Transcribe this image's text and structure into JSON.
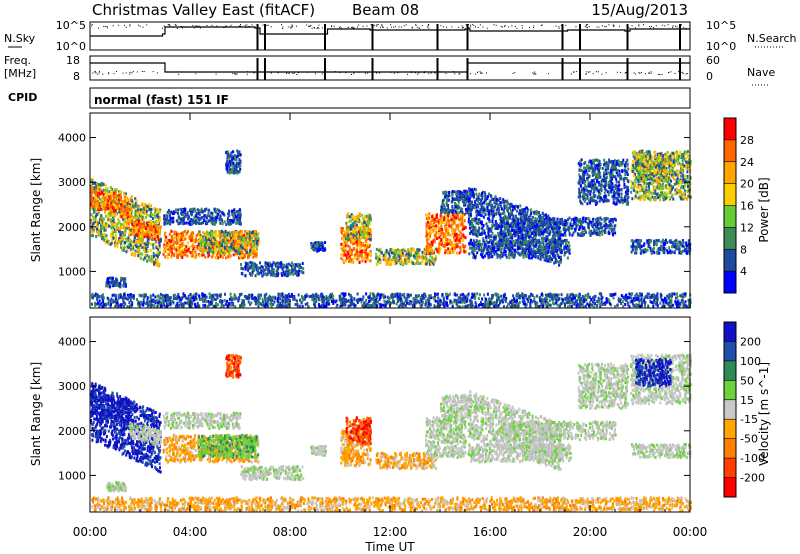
{
  "header": {
    "title": "Christmas Valley East (fitACF)",
    "beam": "Beam 08",
    "date": "15/Aug/2013"
  },
  "nsky_panel": {
    "label": "N.Sky",
    "right_label": "N.Search",
    "y_ticks_left": [
      "10^5",
      "10^0"
    ],
    "y_ticks_right": [
      "10^5",
      "10^0"
    ]
  },
  "freq_panel": {
    "label_line1": "Freq.",
    "label_line2": "[MHz]",
    "right_label": "Nave",
    "y_ticks_left": [
      "18",
      "8"
    ],
    "y_ticks_right": [
      "60",
      "0"
    ]
  },
  "cpid": {
    "label": "CPID",
    "mode": "normal (fast) 151 IF"
  },
  "chart_data": [
    {
      "type": "heatmap",
      "name": "power",
      "ylabel": "Slant Range [km]",
      "xlabel": "",
      "y_ticks": [
        1000,
        2000,
        3000,
        4000
      ],
      "ylim": [
        180,
        4550
      ],
      "xlim_hours": [
        0,
        24
      ],
      "colorbar": {
        "label": "Power [dB]",
        "ticks": [
          "28",
          "24",
          "20",
          "16",
          "12",
          "8",
          "4"
        ],
        "colors": [
          "#ff0000",
          "#ff6600",
          "#ffa500",
          "#ffcc00",
          "#66cc33",
          "#3c8c5a",
          "#1c4ba0",
          "#0000ff"
        ]
      }
    },
    {
      "type": "heatmap",
      "name": "velocity",
      "ylabel": "Slant Range [km]",
      "xlabel": "Time UT",
      "y_ticks": [
        1000,
        2000,
        3000,
        4000
      ],
      "ylim": [
        180,
        4550
      ],
      "xlim_hours": [
        0,
        24
      ],
      "x_tick_labels": [
        "00:00",
        "04:00",
        "08:00",
        "12:00",
        "16:00",
        "20:00",
        "00:00"
      ],
      "colorbar": {
        "label": "Velocity [m s^-1]",
        "ticks": [
          "200",
          "100",
          "50",
          "15",
          "-15",
          "-50",
          "-100",
          "-200"
        ],
        "colors": [
          "#1010c8",
          "#1f4faa",
          "#2e8b57",
          "#6cd33c",
          "#c8c8c8",
          "#ffa500",
          "#ff7f00",
          "#ff4000",
          "#ff0000"
        ]
      }
    }
  ],
  "scatter_regions": [
    {
      "t0": 0.0,
      "t1": 2.8,
      "r0": 1800,
      "r1": 3100,
      "slope": -260,
      "power": "mid",
      "vel": "blue"
    },
    {
      "t0": 0.0,
      "t1": 1.6,
      "r0": 2400,
      "r1": 2900,
      "slope": -150,
      "power": "high",
      "vel": "blue"
    },
    {
      "t0": 1.5,
      "t1": 2.8,
      "r0": 1850,
      "r1": 2200,
      "slope": -150,
      "power": "high",
      "vel": "grey"
    },
    {
      "t0": 2.9,
      "t1": 6.7,
      "r0": 1300,
      "r1": 1900,
      "slope": 0,
      "power": "high",
      "vel": "orange"
    },
    {
      "t0": 4.3,
      "t1": 6.7,
      "r0": 1400,
      "r1": 1900,
      "slope": 0,
      "power": "mid",
      "vel": "green"
    },
    {
      "t0": 5.4,
      "t1": 6.0,
      "r0": 3200,
      "r1": 3700,
      "slope": 0,
      "power": "low",
      "vel": "red"
    },
    {
      "t0": 2.9,
      "t1": 6.0,
      "r0": 2050,
      "r1": 2400,
      "slope": 0,
      "power": "low",
      "vel": "grey"
    },
    {
      "t0": 0.6,
      "t1": 1.4,
      "r0": 650,
      "r1": 850,
      "slope": 0,
      "power": "low",
      "vel": "grey"
    },
    {
      "t0": 6.0,
      "t1": 8.5,
      "r0": 900,
      "r1": 1200,
      "slope": 0,
      "power": "low",
      "vel": "grey"
    },
    {
      "t0": 8.8,
      "t1": 9.4,
      "r0": 1450,
      "r1": 1650,
      "slope": 0,
      "power": "low",
      "vel": "grey"
    },
    {
      "t0": 10.0,
      "t1": 11.2,
      "r0": 1200,
      "r1": 2000,
      "slope": 0,
      "power": "high",
      "vel": "orange"
    },
    {
      "t0": 10.2,
      "t1": 11.2,
      "r0": 1700,
      "r1": 2300,
      "slope": 0,
      "power": "mid",
      "vel": "red"
    },
    {
      "t0": 11.4,
      "t1": 13.8,
      "r0": 1150,
      "r1": 1500,
      "slope": 0,
      "power": "mid",
      "vel": "orange"
    },
    {
      "t0": 13.4,
      "t1": 15.0,
      "r0": 1400,
      "r1": 2300,
      "slope": 0,
      "power": "high",
      "vel": "grey"
    },
    {
      "t0": 14.0,
      "t1": 15.2,
      "r0": 2300,
      "r1": 2800,
      "slope": 0,
      "power": "low",
      "vel": "grey"
    },
    {
      "t0": 15.1,
      "t1": 18.8,
      "r0": 1850,
      "r1": 2900,
      "slope": -200,
      "power": "low",
      "vel": "grey"
    },
    {
      "t0": 15.1,
      "t1": 19.2,
      "r0": 1300,
      "r1": 1700,
      "slope": 0,
      "power": "low",
      "vel": "grey"
    },
    {
      "t0": 16.5,
      "t1": 21.0,
      "r0": 1800,
      "r1": 2200,
      "slope": 0,
      "power": "low",
      "vel": "grey"
    },
    {
      "t0": 19.5,
      "t1": 21.5,
      "r0": 2500,
      "r1": 3500,
      "slope": 0,
      "power": "low",
      "vel": "grey"
    },
    {
      "t0": 21.6,
      "t1": 24.0,
      "r0": 2600,
      "r1": 3700,
      "slope": 0,
      "power": "mid",
      "vel": "grey"
    },
    {
      "t0": 21.8,
      "t1": 23.2,
      "r0": 3000,
      "r1": 3600,
      "slope": 0,
      "power": "mid",
      "vel": "blue"
    },
    {
      "t0": 21.6,
      "t1": 24.0,
      "r0": 1400,
      "r1": 1700,
      "slope": 0,
      "power": "low",
      "vel": "grey"
    },
    {
      "t0": 0.0,
      "t1": 24.0,
      "r0": 200,
      "r1": 500,
      "slope": 0,
      "power": "low",
      "vel": "orange"
    }
  ]
}
